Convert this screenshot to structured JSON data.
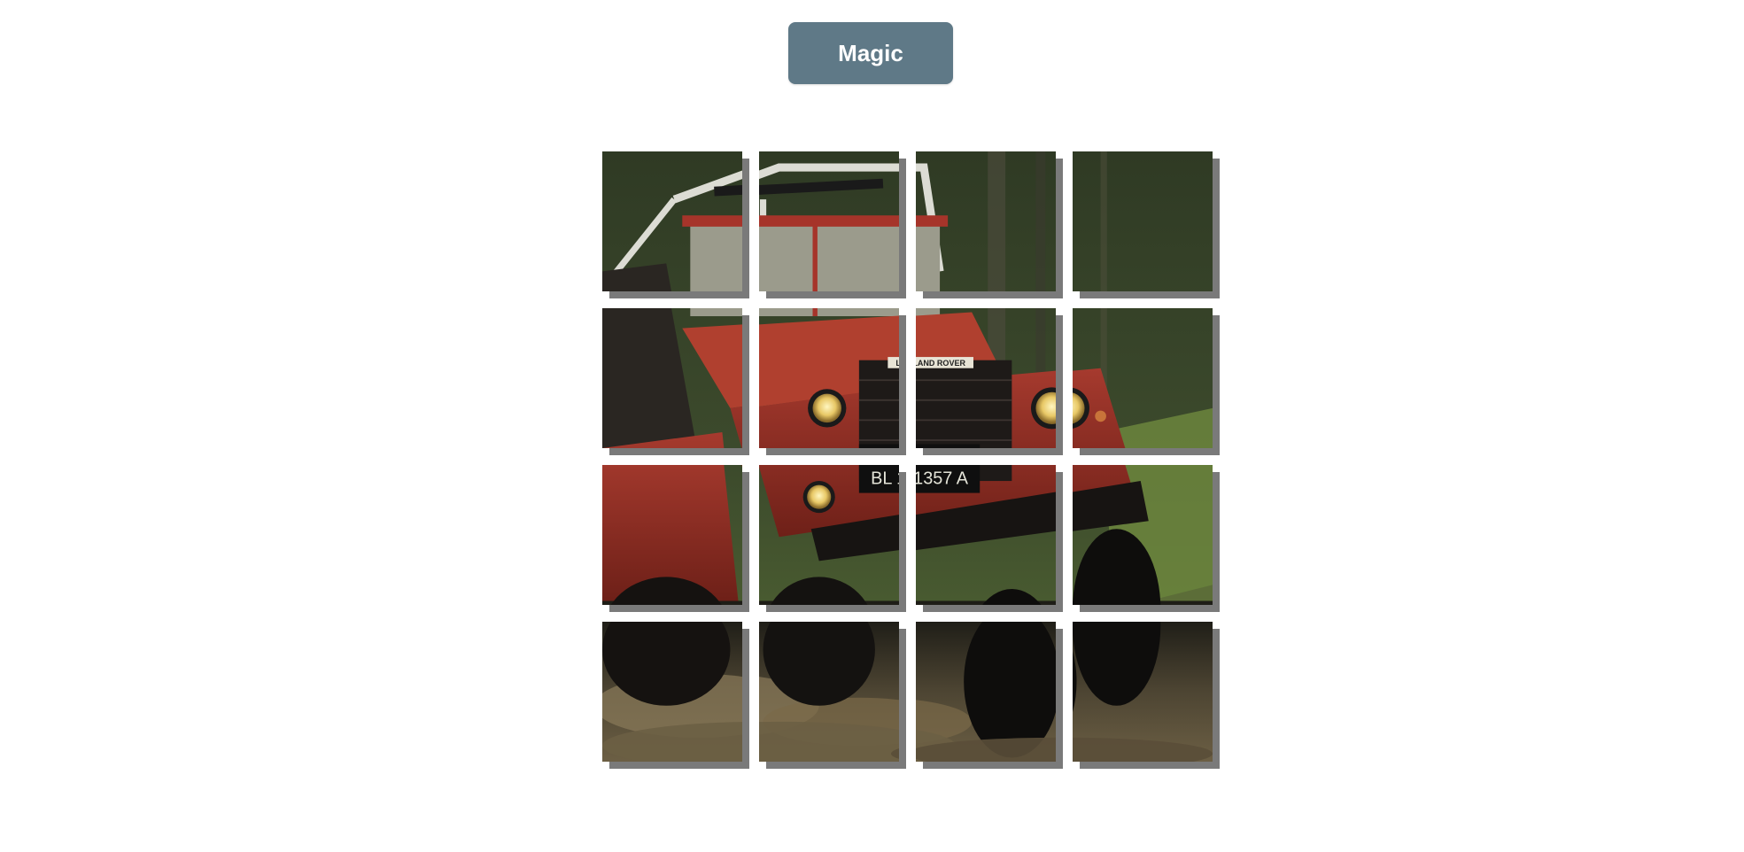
{
  "toolbar": {
    "magic_label": "Magic"
  },
  "colors": {
    "button_bg": "#5f7987",
    "button_text": "#ffffff",
    "tile_shadow": "#7a7a7a",
    "page_bg": "#ffffff"
  },
  "puzzle": {
    "rows": 4,
    "cols": 4,
    "image_subject": "red Land Rover driving through mud in a forest",
    "plate_text": "BL 1357 A",
    "badge_text": "LAND ROVER"
  }
}
